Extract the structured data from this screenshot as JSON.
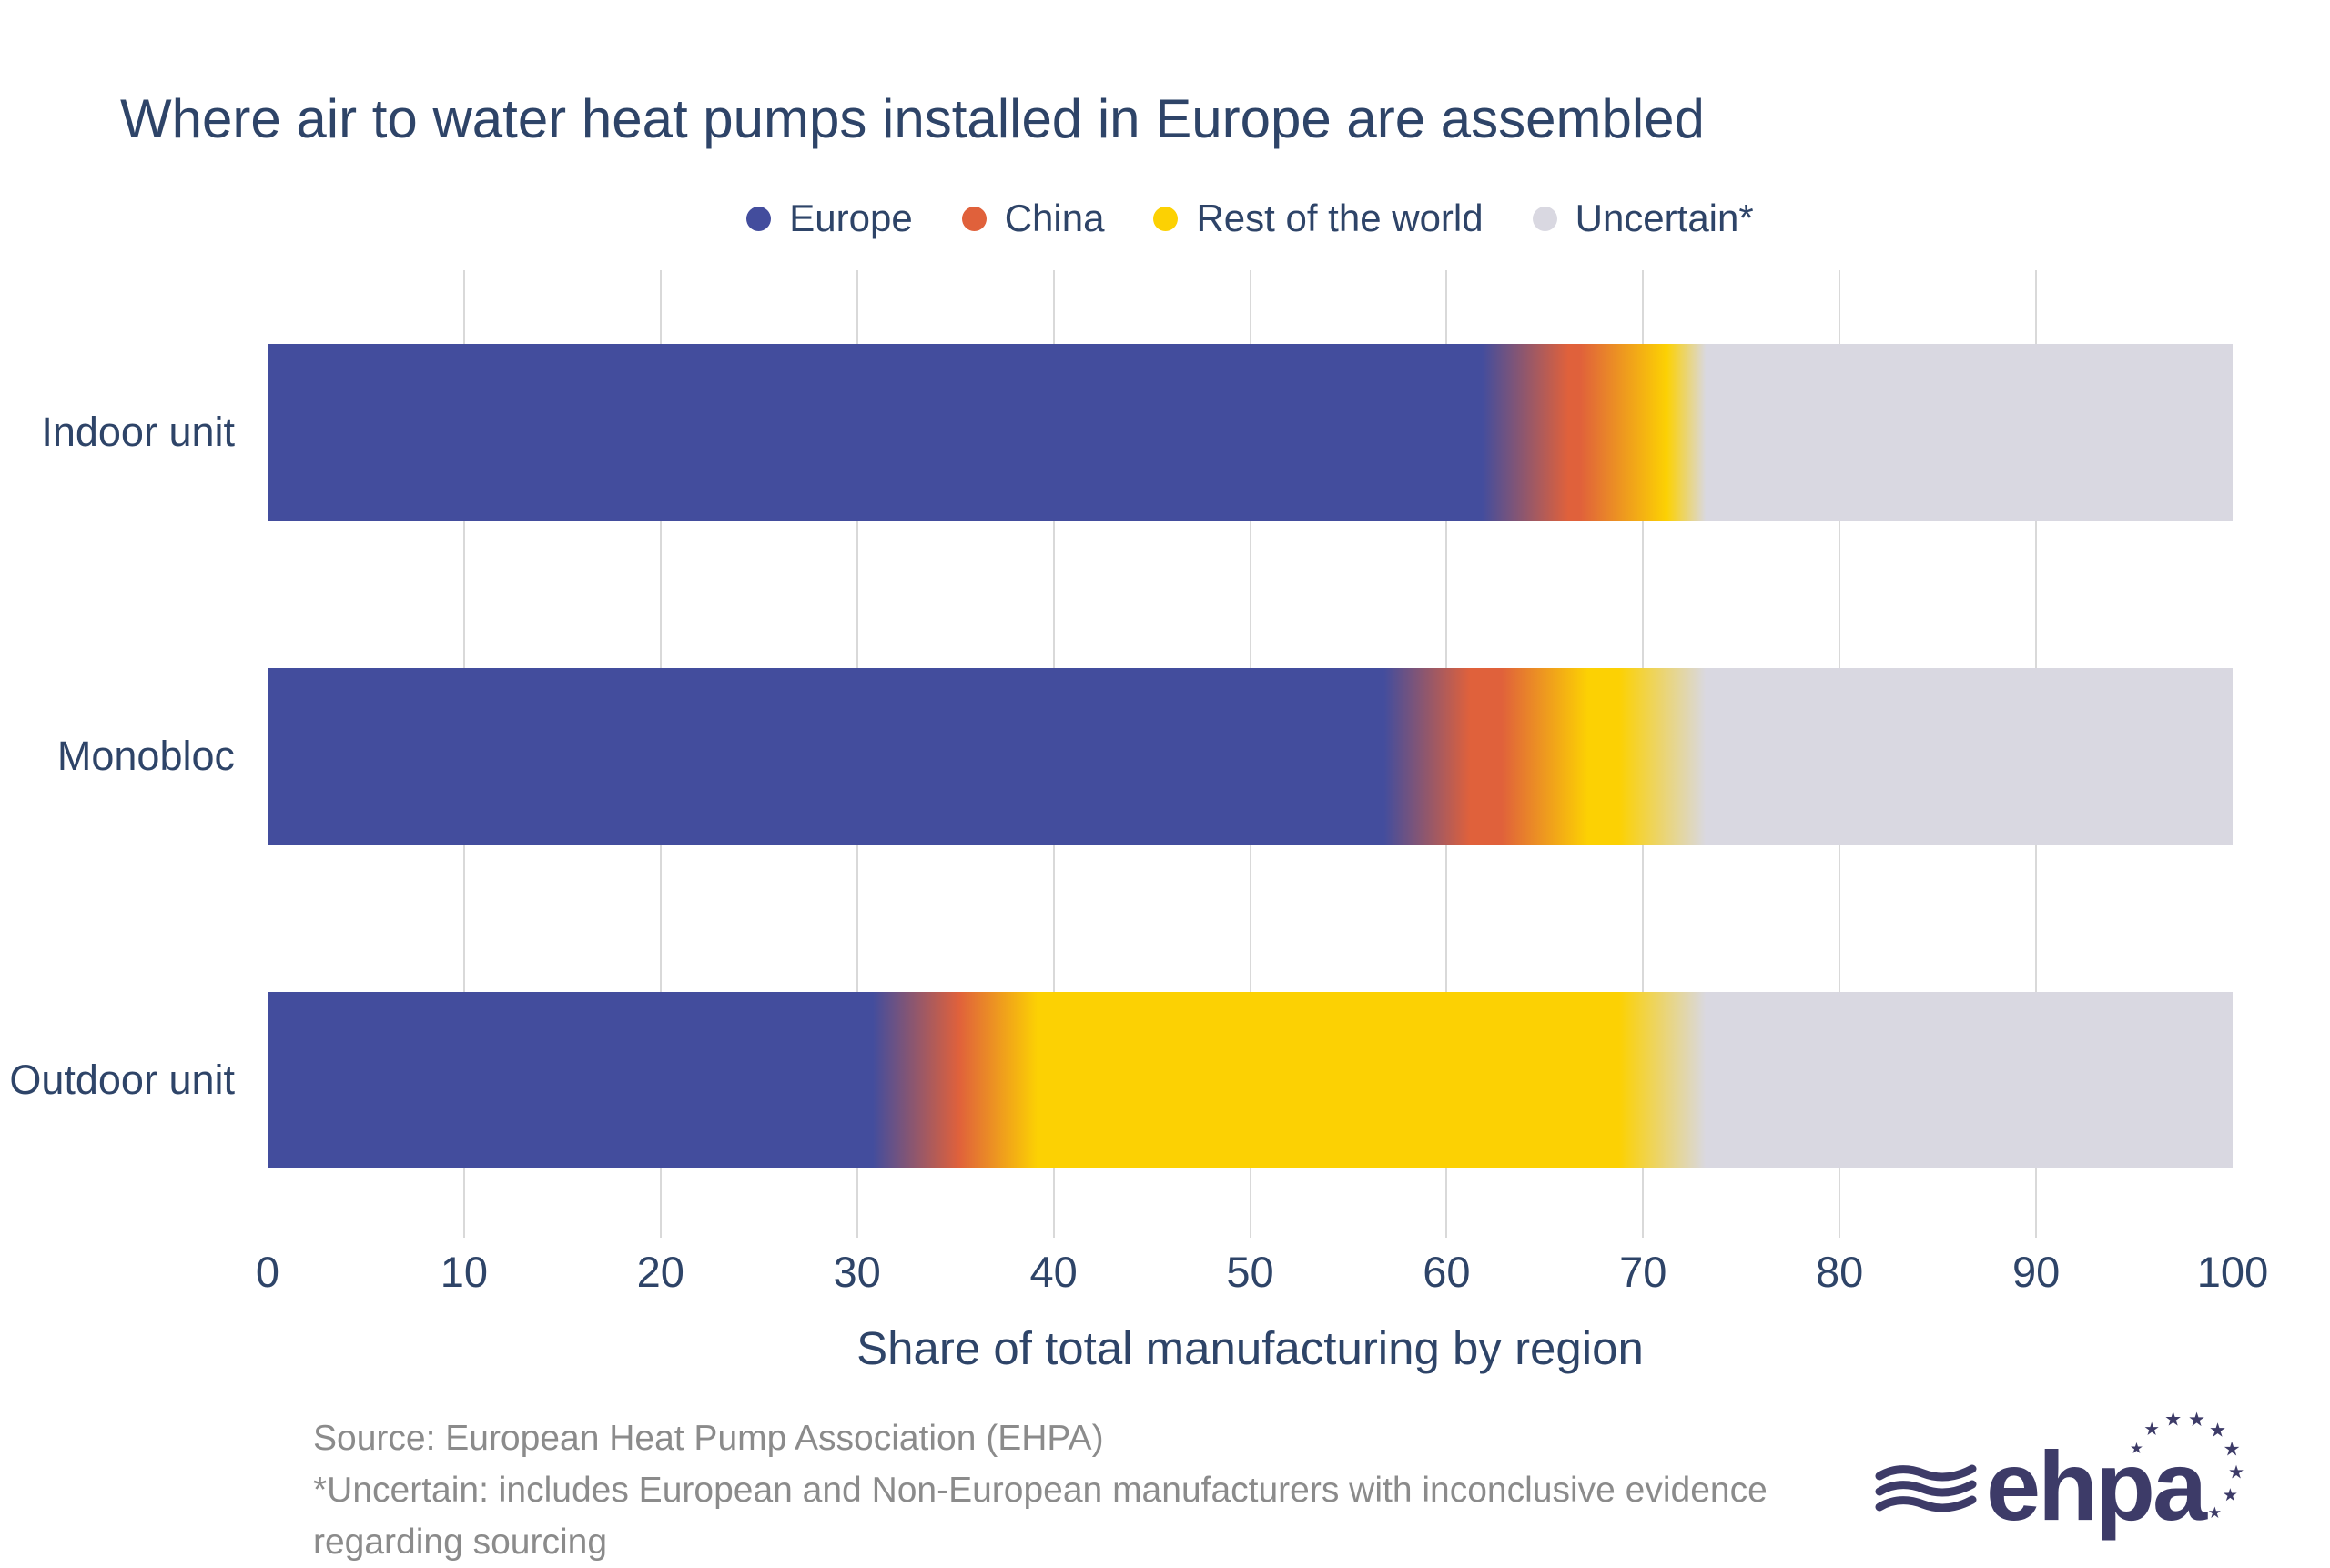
{
  "chart_data": {
    "type": "bar",
    "orientation": "horizontal",
    "stacked": true,
    "title": "Where air to water heat pumps installed in Europe are assembled",
    "xlabel": "Share of total manufacturing by region",
    "xlim": [
      0,
      100
    ],
    "xticks": [
      0,
      10,
      20,
      30,
      40,
      50,
      60,
      70,
      80,
      90,
      100
    ],
    "grid": true,
    "grid_ticks": [
      10,
      20,
      30,
      40,
      50,
      60,
      70,
      80,
      90
    ],
    "legend_position": "top",
    "categories": [
      "Indoor unit",
      "Monobloc",
      "Outdoor unit"
    ],
    "series": [
      {
        "name": "Europe",
        "color": "#434d9d",
        "values": [
          64,
          59,
          33
        ]
      },
      {
        "name": "China",
        "color": "#e0613b",
        "values": [
          5,
          6,
          4
        ]
      },
      {
        "name": "Rest of the world",
        "color": "#fcd103",
        "values": [
          2,
          6,
          34
        ]
      },
      {
        "name": "Uncertain*",
        "color": "#d9d8e1",
        "values": [
          29,
          29,
          29
        ]
      }
    ],
    "segment_blend_pct": 2.2
  },
  "footer": {
    "source": "Source: European Heat Pump Association (EHPA)",
    "note_lines": [
      "*Uncertain: includes European and Non-European manufacturers with inconclusive evidence",
      "regarding sourcing"
    ]
  },
  "logo": {
    "text": "ehpa"
  },
  "colors": {
    "text_navy": "#2e4468",
    "footnote_gray": "#8b8b8b",
    "gridline": "#d9d9d9",
    "logo_navy": "#3d3b68",
    "background": "#ffffff"
  }
}
